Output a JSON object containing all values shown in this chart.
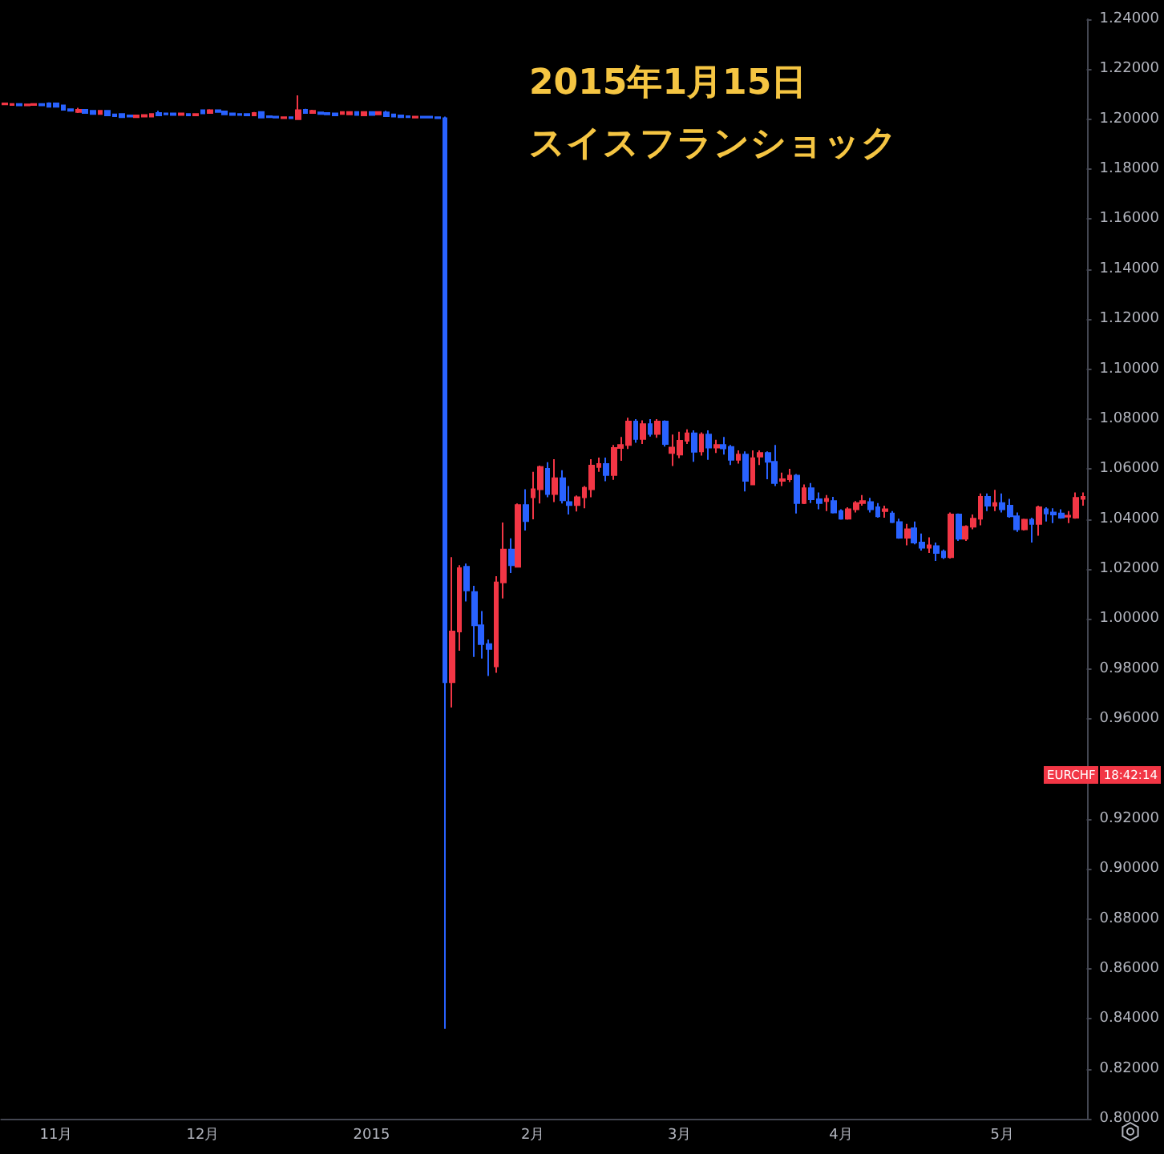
{
  "chart_data": {
    "type": "candlestick",
    "title": "2015年1月15日",
    "subtitle": "スイスフランショック",
    "annotations": [
      "EURCHF",
      "18:42:14"
    ],
    "colors": [
      "#f23645",
      "#f23645",
      "#2962ff",
      "#f23645",
      "#f23645",
      "#2962ff",
      "#2962ff",
      "#2962ff",
      "#2962ff",
      "#2962ff",
      "#f23645",
      "#2962ff",
      "#2962ff",
      "#f23645",
      "#2962ff",
      "#2962ff",
      "#2962ff",
      "#2962ff",
      "#f23645",
      "#f23645",
      "#f23645",
      "#2962ff",
      "#2962ff",
      "#2962ff",
      "#f23645",
      "#2962ff",
      "#f23645",
      "#2962ff",
      "#f23645",
      "#2962ff",
      "#2962ff",
      "#2962ff",
      "#2962ff",
      "#2962ff",
      "#f23645",
      "#2962ff",
      "#2962ff",
      "#2962ff",
      "#f23645",
      "#2962ff",
      "#f23645",
      "#2962ff",
      "#f23645",
      "#2962ff",
      "#2962ff",
      "#2962ff",
      "#f23645",
      "#f23645",
      "#2962ff",
      "#f23645",
      "#2962ff",
      "#f23645",
      "#2962ff",
      "#2962ff",
      "#2962ff",
      "#2962ff",
      "#f23645",
      "#2962ff",
      "#2962ff",
      "#2962ff",
      "#2962ff",
      "#f23645",
      "#f23645",
      "#2962ff",
      "#2962ff",
      "#2962ff",
      "#2962ff",
      "#f23645",
      "#f23645",
      "#2962ff",
      "#f23645",
      "#2962ff",
      "#f23645",
      "#f23645",
      "#2962ff",
      "#f23645",
      "#2962ff",
      "#2962ff",
      "#f23645",
      "#f23645",
      "#f23645",
      "#f23645",
      "#2962ff",
      "#f23645",
      "#f23645",
      "#f23645",
      "#2962ff",
      "#f23645",
      "#2962ff",
      "#f23645",
      "#2962ff",
      "#f23645",
      "#f23645",
      "#f23645",
      "#2962ff",
      "#f23645",
      "#2962ff",
      "#f23645",
      "#2962ff",
      "#2962ff",
      "#f23645",
      "#2962ff",
      "#f23645",
      "#f23645",
      "#2962ff",
      "#2962ff",
      "#f23645",
      "#f23645",
      "#2962ff",
      "#f23645",
      "#2962ff",
      "#2962ff",
      "#f23645",
      "#2962ff",
      "#2962ff",
      "#f23645",
      "#f23645",
      "#f23645",
      "#2962ff",
      "#2962ff",
      "#f23645",
      "#2962ff",
      "#2962ff",
      "#f23645",
      "#2962ff",
      "#2962ff",
      "#f23645",
      "#2962ff",
      "#2962ff",
      "#f23645",
      "#2962ff",
      "#f23645",
      "#f23645",
      "#f23645",
      "#2962ff",
      "#f23645",
      "#2962ff",
      "#2962ff",
      "#2962ff",
      "#f23645",
      "#2962ff",
      "#f23645",
      "#2962ff",
      "#2962ff",
      "#2962ff",
      "#f23645",
      "#f23645",
      "#f23645"
    ],
    "categories": [
      null,
      null,
      null,
      null,
      null,
      null,
      null,
      "11月",
      null,
      null,
      null,
      null,
      null,
      null,
      null,
      null,
      null,
      null,
      null,
      null,
      null,
      null,
      null,
      null,
      null,
      null,
      null,
      "12月",
      null,
      null,
      null,
      null,
      null,
      null,
      null,
      null,
      null,
      null,
      null,
      null,
      null,
      null,
      null,
      null,
      null,
      null,
      null,
      null,
      null,
      null,
      "2015",
      null,
      null,
      null,
      null,
      null,
      null,
      null,
      null,
      null,
      null,
      null,
      null,
      null,
      null,
      null,
      null,
      null,
      null,
      null,
      null,
      null,
      "2月",
      null,
      null,
      null,
      null,
      null,
      null,
      null,
      null,
      null,
      null,
      null,
      null,
      null,
      null,
      null,
      null,
      null,
      null,
      null,
      "3月",
      null,
      null,
      null,
      null,
      null,
      null,
      null,
      null,
      null,
      null,
      null,
      null,
      null,
      null,
      null,
      null,
      null,
      null,
      null,
      null,
      null,
      "4月",
      null,
      null,
      null,
      null,
      null,
      null,
      null,
      null,
      null,
      null,
      null,
      null,
      null,
      null,
      null,
      null,
      null,
      null,
      null,
      null,
      null,
      "5月",
      null,
      null,
      null,
      null,
      null,
      null,
      null,
      null,
      null,
      null,
      null
    ],
    "ohlc": [
      [
        1.2059,
        1.2065,
        1.2057,
        1.2063
      ],
      [
        1.2057,
        1.2063,
        1.2055,
        1.2061
      ],
      [
        1.2061,
        1.2063,
        1.2053,
        1.2055
      ],
      [
        1.2055,
        1.2061,
        1.2053,
        1.2059
      ],
      [
        1.2057,
        1.2063,
        1.2055,
        1.2061
      ],
      [
        1.2061,
        1.2063,
        1.2053,
        1.2055
      ],
      [
        1.2063,
        1.2067,
        1.2048,
        1.205
      ],
      [
        1.2063,
        1.2065,
        1.2048,
        1.205
      ],
      [
        1.2055,
        1.2057,
        1.2036,
        1.2038
      ],
      [
        1.204,
        1.2042,
        1.2031,
        1.2034
      ],
      [
        1.2029,
        1.2046,
        1.2025,
        1.2038
      ],
      [
        1.2038,
        1.204,
        1.2023,
        1.2025
      ],
      [
        1.2034,
        1.2036,
        1.2019,
        1.2021
      ],
      [
        1.2021,
        1.2036,
        1.2019,
        1.2034
      ],
      [
        1.2034,
        1.2036,
        1.2012,
        1.2015
      ],
      [
        1.2019,
        1.2021,
        1.201,
        1.2012
      ],
      [
        1.2021,
        1.2023,
        1.2006,
        1.2008
      ],
      [
        1.2015,
        1.2017,
        1.2008,
        1.201
      ],
      [
        1.2008,
        1.2017,
        1.2006,
        1.2015
      ],
      [
        1.201,
        1.2019,
        1.2008,
        1.2017
      ],
      [
        1.201,
        1.2023,
        1.2008,
        1.2021
      ],
      [
        1.2025,
        1.2034,
        1.2012,
        1.2015
      ],
      [
        1.2023,
        1.2025,
        1.2017,
        1.2019
      ],
      [
        1.2023,
        1.2025,
        1.2015,
        1.2017
      ],
      [
        1.2017,
        1.2025,
        1.2015,
        1.2023
      ],
      [
        1.2021,
        1.2023,
        1.2012,
        1.2015
      ],
      [
        1.2015,
        1.2023,
        1.2012,
        1.2021
      ],
      [
        1.2036,
        1.2038,
        1.2021,
        1.2023
      ],
      [
        1.2025,
        1.204,
        1.2023,
        1.2036
      ],
      [
        1.2036,
        1.2038,
        1.2027,
        1.2029
      ],
      [
        1.2031,
        1.2034,
        1.2017,
        1.2019
      ],
      [
        1.2023,
        1.2025,
        1.2015,
        1.2017
      ],
      [
        1.2021,
        1.2023,
        1.2015,
        1.2017
      ],
      [
        1.2021,
        1.2023,
        1.2012,
        1.2015
      ],
      [
        1.2015,
        1.2029,
        1.2012,
        1.2025
      ],
      [
        1.2029,
        1.2031,
        1.2004,
        1.2006
      ],
      [
        1.2012,
        1.2015,
        1.2006,
        1.2008
      ],
      [
        1.201,
        1.2012,
        1.2004,
        1.2006
      ],
      [
        1.2004,
        1.201,
        1.2002,
        1.2008
      ],
      [
        1.2008,
        1.201,
        1.2002,
        1.2004
      ],
      [
        1.2,
        1.2095,
        1.1998,
        1.2036
      ],
      [
        1.2038,
        1.2042,
        1.2023,
        1.2025
      ],
      [
        1.2025,
        1.2038,
        1.2023,
        1.2034
      ],
      [
        1.2027,
        1.2029,
        1.2019,
        1.2021
      ],
      [
        1.2025,
        1.2027,
        1.2017,
        1.2019
      ],
      [
        1.2023,
        1.2025,
        1.2012,
        1.2015
      ],
      [
        1.2021,
        1.2031,
        1.2019,
        1.2029
      ],
      [
        1.2019,
        1.2031,
        1.2017,
        1.2029
      ],
      [
        1.2029,
        1.2031,
        1.2015,
        1.2017
      ],
      [
        1.2015,
        1.2031,
        1.2012,
        1.2029
      ],
      [
        1.2029,
        1.2031,
        1.2015,
        1.2017
      ],
      [
        1.2019,
        1.2031,
        1.2017,
        1.2029
      ],
      [
        1.2027,
        1.2034,
        1.201,
        1.2012
      ],
      [
        1.2019,
        1.2021,
        1.2008,
        1.201
      ],
      [
        1.2015,
        1.2017,
        1.2006,
        1.2008
      ],
      [
        1.2012,
        1.2015,
        1.2006,
        1.2008
      ],
      [
        1.2006,
        1.2012,
        1.2004,
        1.201
      ],
      [
        1.201,
        1.2012,
        1.2004,
        1.2006
      ],
      [
        1.201,
        1.2012,
        1.2004,
        1.2006
      ],
      [
        1.2008,
        1.201,
        1.2002,
        1.2004
      ],
      [
        1.2004,
        1.201,
        0.836,
        0.9747
      ],
      [
        0.9747,
        1.0247,
        0.9646,
        0.995
      ],
      [
        0.995,
        1.0215,
        0.9873,
        1.0203
      ],
      [
        1.0209,
        1.0222,
        1.007,
        1.0114
      ],
      [
        1.0108,
        1.0133,
        0.9848,
        0.9975
      ],
      [
        0.9975,
        1.0032,
        0.9842,
        0.9899
      ],
      [
        0.9899,
        0.9918,
        0.9772,
        0.988
      ],
      [
        0.981,
        1.0171,
        0.9785,
        1.0146
      ],
      [
        1.0146,
        1.0386,
        1.0082,
        1.0278
      ],
      [
        1.0278,
        1.0323,
        1.0184,
        1.0215
      ],
      [
        1.0209,
        1.0462,
        1.0209,
        1.0456
      ],
      [
        1.0456,
        1.0519,
        1.0354,
        1.0392
      ],
      [
        1.0487,
        1.0589,
        1.0399,
        1.0519
      ],
      [
        1.0519,
        1.0614,
        1.0462,
        1.0608
      ],
      [
        1.0601,
        1.0627,
        1.0487,
        1.05
      ],
      [
        1.05,
        1.0639,
        1.0468,
        1.0563
      ],
      [
        1.0563,
        1.0595,
        1.0462,
        1.0475
      ],
      [
        1.0468,
        1.0532,
        1.0418,
        1.0456
      ],
      [
        1.0456,
        1.0494,
        1.043,
        1.0487
      ],
      [
        1.0487,
        1.0532,
        1.0443,
        1.0525
      ],
      [
        1.0519,
        1.0639,
        1.0487,
        1.0614
      ],
      [
        1.0608,
        1.0646,
        1.0589,
        1.062
      ],
      [
        1.062,
        1.0646,
        1.0551,
        1.0576
      ],
      [
        1.0576,
        1.0696,
        1.0557,
        1.0684
      ],
      [
        1.0684,
        1.0728,
        1.0633,
        1.0696
      ],
      [
        1.0696,
        1.0805,
        1.068,
        1.079
      ],
      [
        1.079,
        1.08,
        1.0705,
        1.072
      ],
      [
        1.072,
        1.0795,
        1.07,
        1.078
      ],
      [
        1.078,
        1.08,
        1.073,
        1.074
      ],
      [
        1.074,
        1.08,
        1.0725,
        1.079
      ],
      [
        1.079,
        1.0795,
        1.069,
        1.07
      ],
      [
        1.0664,
        1.0738,
        1.0612,
        1.0686
      ],
      [
        1.0658,
        1.0749,
        1.0643,
        1.0713
      ],
      [
        1.0713,
        1.0759,
        1.07,
        1.0743
      ],
      [
        1.0743,
        1.0755,
        1.0629,
        1.0669
      ],
      [
        1.0671,
        1.0747,
        1.0654,
        1.0738
      ],
      [
        1.0738,
        1.0755,
        1.0637,
        1.0686
      ],
      [
        1.0686,
        1.0717,
        1.0664,
        1.0696
      ],
      [
        1.0696,
        1.0728,
        1.0658,
        1.0683
      ],
      [
        1.0688,
        1.0696,
        1.0616,
        1.0637
      ],
      [
        1.0637,
        1.0675,
        1.0622,
        1.0658
      ],
      [
        1.0658,
        1.0671,
        1.051,
        1.0553
      ],
      [
        1.0538,
        1.0675,
        1.0538,
        1.0643
      ],
      [
        1.065,
        1.0675,
        1.0616,
        1.0664
      ],
      [
        1.0664,
        1.0671,
        1.0559,
        1.0629
      ],
      [
        1.0629,
        1.0696,
        1.0532,
        1.0544
      ],
      [
        1.0553,
        1.0586,
        1.0532,
        1.0559
      ],
      [
        1.0559,
        1.0601,
        1.0548,
        1.0574
      ],
      [
        1.0574,
        1.058,
        1.0422,
        1.0464
      ],
      [
        1.0464,
        1.0538,
        1.046,
        1.0523
      ],
      [
        1.0523,
        1.0544,
        1.0464,
        1.0479
      ],
      [
        1.0479,
        1.0506,
        1.0439,
        1.0464
      ],
      [
        1.0472,
        1.0496,
        1.0432,
        1.0481
      ],
      [
        1.0472,
        1.0489,
        1.0422,
        1.0426
      ],
      [
        1.0432,
        1.0439,
        1.0397,
        1.0401
      ],
      [
        1.0401,
        1.0447,
        1.0397,
        1.0439
      ],
      [
        1.0439,
        1.0472,
        1.0426,
        1.0464
      ],
      [
        1.0464,
        1.0496,
        1.0453,
        1.0472
      ],
      [
        1.0468,
        1.0485,
        1.0426,
        1.0439
      ],
      [
        1.0447,
        1.0464,
        1.0405,
        1.0411
      ],
      [
        1.0432,
        1.0453,
        1.0405,
        1.0439
      ],
      [
        1.0422,
        1.0432,
        1.0384,
        1.0388
      ],
      [
        1.0388,
        1.0401,
        1.0321,
        1.0325
      ],
      [
        1.0325,
        1.038,
        1.0295,
        1.0359
      ],
      [
        1.0363,
        1.039,
        1.0299,
        1.0306
      ],
      [
        1.0306,
        1.0342,
        1.0274,
        1.0285
      ],
      [
        1.0285,
        1.0327,
        1.0264,
        1.0295
      ],
      [
        1.0291,
        1.0306,
        1.0232,
        1.0264
      ],
      [
        1.027,
        1.0278,
        1.024,
        1.0247
      ],
      [
        1.0247,
        1.0426,
        1.0242,
        1.0418
      ],
      [
        1.0418,
        1.0422,
        1.0312,
        1.0321
      ],
      [
        1.0321,
        1.0375,
        1.0312,
        1.0369
      ],
      [
        1.0369,
        1.0418,
        1.0359,
        1.0401
      ],
      [
        1.0401,
        1.0502,
        1.0375,
        1.0489
      ],
      [
        1.0489,
        1.0502,
        1.0432,
        1.0453
      ],
      [
        1.0453,
        1.0517,
        1.0432,
        1.0464
      ],
      [
        1.0464,
        1.0502,
        1.0426,
        1.0439
      ],
      [
        1.0453,
        1.0481,
        1.0405,
        1.0411
      ],
      [
        1.0411,
        1.0426,
        1.0348,
        1.0359
      ],
      [
        1.0359,
        1.0401,
        1.0354,
        1.0397
      ],
      [
        1.0397,
        1.0405,
        1.0306,
        1.038
      ],
      [
        1.038,
        1.0453,
        1.0333,
        1.0447
      ],
      [
        1.0439,
        1.0447,
        1.039,
        1.0422
      ],
      [
        1.0426,
        1.0443,
        1.0384,
        1.0418
      ],
      [
        1.0422,
        1.0439,
        1.0401,
        1.0405
      ],
      [
        1.0409,
        1.0432,
        1.0384,
        1.0413
      ],
      [
        1.0405,
        1.0506,
        1.0401,
        1.0485
      ],
      [
        1.0481,
        1.0506,
        1.0453,
        1.0489
      ]
    ],
    "ylim": [
      0.8,
      1.24
    ],
    "yticks": [
      {
        "value": 0.8,
        "label": "0.80000"
      },
      {
        "value": 0.82,
        "label": "0.82000"
      },
      {
        "value": 0.84,
        "label": "0.84000"
      },
      {
        "value": 0.86,
        "label": "0.86000"
      },
      {
        "value": 0.88,
        "label": "0.88000"
      },
      {
        "value": 0.9,
        "label": "0.90000"
      },
      {
        "value": 0.92,
        "label": "0.92000"
      },
      {
        "value": 0.94,
        "label": null
      },
      {
        "value": 0.96,
        "label": "0.96000"
      },
      {
        "value": 0.98,
        "label": "0.98000"
      },
      {
        "value": 1.0,
        "label": "1.00000"
      },
      {
        "value": 1.02,
        "label": "1.02000"
      },
      {
        "value": 1.04,
        "label": "1.04000"
      },
      {
        "value": 1.06,
        "label": "1.06000"
      },
      {
        "value": 1.08,
        "label": "1.08000"
      },
      {
        "value": 1.1,
        "label": "1.10000"
      },
      {
        "value": 1.12,
        "label": "1.12000"
      },
      {
        "value": 1.14,
        "label": "1.14000"
      },
      {
        "value": 1.16,
        "label": "1.16000"
      },
      {
        "value": 1.18,
        "label": "1.18000"
      },
      {
        "value": 1.2,
        "label": "1.20000"
      },
      {
        "value": 1.22,
        "label": "1.22000"
      },
      {
        "value": 1.24,
        "label": "1.24000"
      }
    ],
    "grid": false
  }
}
